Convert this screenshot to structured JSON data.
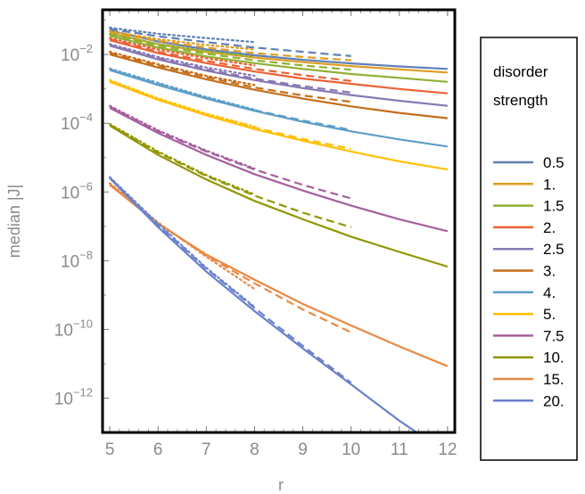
{
  "chart_data": {
    "type": "line",
    "xlabel": "r",
    "ylabel": "median |J|",
    "xlim": [
      4.85,
      12.15
    ],
    "ylim": [
      1e-13,
      0.2
    ],
    "y_scale": "log",
    "x_ticks": [
      5,
      6,
      7,
      8,
      9,
      10,
      11,
      12
    ],
    "y_ticks": [
      {
        "value": 0.01,
        "base": "10",
        "exp": "−2"
      },
      {
        "value": 0.0001,
        "base": "10",
        "exp": "−4"
      },
      {
        "value": 1e-06,
        "base": "10",
        "exp": "−6"
      },
      {
        "value": 1e-08,
        "base": "10",
        "exp": "−8"
      },
      {
        "value": 1e-10,
        "base": "10",
        "exp": "−10"
      },
      {
        "value": 1e-12,
        "base": "10",
        "exp": "−12"
      }
    ],
    "legend": {
      "title_line1": "disorder",
      "title_line2": "strength",
      "position": "right"
    },
    "line_styles": [
      "solid",
      "dashed",
      "dotted"
    ],
    "series": [
      {
        "name": "0.5",
        "color": "#5e81b5",
        "solid": {
          "x": [
            5,
            6,
            7,
            8,
            9,
            10,
            11,
            12
          ],
          "y": [
            0.05,
            0.024,
            0.014,
            0.0095,
            0.007,
            0.0055,
            0.0045,
            0.0038
          ]
        },
        "dashed": {
          "x": [
            5,
            6,
            7,
            8,
            9,
            10
          ],
          "y": [
            0.055,
            0.034,
            0.023,
            0.016,
            0.012,
            0.009
          ]
        },
        "dotted": {
          "x": [
            5,
            6,
            7,
            8
          ],
          "y": [
            0.06,
            0.04,
            0.03,
            0.023
          ]
        }
      },
      {
        "name": "1.",
        "color": "#e19c24",
        "solid": {
          "x": [
            5,
            6,
            7,
            8,
            9,
            10,
            11,
            12
          ],
          "y": [
            0.042,
            0.02,
            0.012,
            0.0082,
            0.006,
            0.0046,
            0.0037,
            0.003
          ]
        },
        "dashed": {
          "x": [
            5,
            6,
            7,
            8,
            9,
            10
          ],
          "y": [
            0.045,
            0.025,
            0.016,
            0.011,
            0.0085,
            0.0068
          ]
        },
        "dotted": {
          "x": [
            5,
            6,
            7,
            8
          ],
          "y": [
            0.048,
            0.028,
            0.019,
            0.014
          ]
        }
      },
      {
        "name": "1.5",
        "color": "#8fb032",
        "solid": {
          "x": [
            5,
            6,
            7,
            8,
            9,
            10,
            11,
            12
          ],
          "y": [
            0.035,
            0.016,
            0.0088,
            0.0056,
            0.0038,
            0.0027,
            0.0021,
            0.0016
          ]
        },
        "dashed": {
          "x": [
            5,
            6,
            7,
            8,
            9,
            10
          ],
          "y": [
            0.038,
            0.018,
            0.0105,
            0.0068,
            0.0048,
            0.0036
          ]
        },
        "dotted": {
          "x": [
            5,
            6,
            7,
            8
          ],
          "y": [
            0.04,
            0.02,
            0.0125,
            0.0085
          ]
        }
      },
      {
        "name": "2.",
        "color": "#eb6235",
        "solid": {
          "x": [
            5,
            6,
            7,
            8,
            9,
            10,
            11,
            12
          ],
          "y": [
            0.026,
            0.011,
            0.0056,
            0.0032,
            0.002,
            0.0014,
            0.00099,
            0.00074
          ]
        },
        "dashed": {
          "x": [
            5,
            6,
            7,
            8,
            9,
            10
          ],
          "y": [
            0.028,
            0.012,
            0.0065,
            0.0038,
            0.0025,
            0.0017
          ]
        },
        "dotted": {
          "x": [
            5,
            6,
            7,
            8
          ],
          "y": [
            0.03,
            0.014,
            0.0078,
            0.0048
          ]
        }
      },
      {
        "name": "2.5",
        "color": "#8778b3",
        "solid": {
          "x": [
            5,
            6,
            7,
            8,
            9,
            10,
            11,
            12
          ],
          "y": [
            0.018,
            0.0072,
            0.0034,
            0.0018,
            0.00105,
            0.00066,
            0.00045,
            0.00032
          ]
        },
        "dashed": {
          "x": [
            5,
            6,
            7,
            8,
            9,
            10
          ],
          "y": [
            0.019,
            0.0078,
            0.0037,
            0.002,
            0.0012,
            0.00078
          ]
        },
        "dotted": {
          "x": [
            5,
            6,
            7,
            8
          ],
          "y": [
            0.02,
            0.0085,
            0.0042,
            0.0024
          ]
        }
      },
      {
        "name": "3.",
        "color": "#c56e1a",
        "solid": {
          "x": [
            5,
            6,
            7,
            8,
            9,
            10,
            11,
            12
          ],
          "y": [
            0.01,
            0.0042,
            0.0019,
            0.00094,
            0.00052,
            0.00031,
            0.0002,
            0.00014
          ]
        },
        "dashed": {
          "x": [
            5,
            6,
            7,
            8,
            9,
            10
          ],
          "y": [
            0.011,
            0.0048,
            0.0022,
            0.0011,
            0.00064,
            0.00042
          ]
        },
        "dotted": {
          "x": [
            5,
            6,
            7,
            8
          ],
          "y": [
            0.012,
            0.0052,
            0.0024,
            0.0013
          ]
        }
      },
      {
        "name": "4.",
        "color": "#5d9ec7",
        "solid": {
          "x": [
            5,
            6,
            7,
            8,
            9,
            10,
            11,
            12
          ],
          "y": [
            0.0035,
            0.0013,
            0.00052,
            0.00023,
            0.00011,
            5.8e-05,
            3.4e-05,
            2.1e-05
          ]
        },
        "dashed": {
          "x": [
            5,
            6,
            7,
            8,
            9,
            10
          ],
          "y": [
            0.0037,
            0.0014,
            0.00055,
            0.00024,
            0.00012,
            6.4e-05
          ]
        },
        "dotted": {
          "x": [
            5,
            6,
            7,
            8
          ],
          "y": [
            0.0039,
            0.0015,
            0.00058,
            0.00025
          ]
        }
      },
      {
        "name": "5.",
        "color": "#ffbf00",
        "solid": {
          "x": [
            5,
            6,
            7,
            8,
            9,
            10,
            11,
            12
          ],
          "y": [
            0.0016,
            0.00048,
            0.00017,
            6.8e-05,
            3.1e-05,
            1.5e-05,
            7.8e-06,
            4.5e-06
          ]
        },
        "dashed": {
          "x": [
            5,
            6,
            7,
            8,
            9,
            10
          ],
          "y": [
            0.0017,
            0.0005,
            0.00018,
            7.5e-05,
            3.5e-05,
            1.8e-05
          ]
        },
        "dotted": {
          "x": [
            5,
            6,
            7,
            8
          ],
          "y": [
            0.0018,
            0.00053,
            0.00019,
            8e-05
          ]
        }
      },
      {
        "name": "7.5",
        "color": "#a5609d",
        "solid": {
          "x": [
            5,
            6,
            7,
            8,
            9,
            10,
            11,
            12
          ],
          "y": [
            0.00028,
            5.2e-05,
            1.2e-05,
            3.3e-06,
            1.1e-06,
            4e-07,
            1.6e-07,
            7.2e-08
          ]
        },
        "dashed": {
          "x": [
            5,
            6,
            7,
            8,
            9,
            10
          ],
          "y": [
            0.0003,
            5.8e-05,
            1.5e-05,
            4.5e-06,
            1.6e-06,
            6.5e-07
          ]
        },
        "dotted": {
          "x": [
            5,
            6,
            7,
            8
          ],
          "y": [
            0.00032,
            6.2e-05,
            1.6e-05,
            4.8e-06
          ]
        }
      },
      {
        "name": "10.",
        "color": "#929600",
        "solid": {
          "x": [
            5,
            6,
            7,
            8,
            9,
            10,
            11,
            12
          ],
          "y": [
            8.5e-05,
            1.2e-05,
            2.3e-06,
            5.5e-07,
            1.6e-07,
            5e-08,
            1.8e-08,
            6.7e-09
          ]
        },
        "dashed": {
          "x": [
            5,
            6,
            7,
            8,
            9,
            10
          ],
          "y": [
            9e-05,
            1.4e-05,
            2.9e-06,
            7.8e-07,
            2.5e-07,
            9.4e-08
          ]
        },
        "dotted": {
          "x": [
            5,
            6,
            7,
            8
          ],
          "y": [
            9.5e-05,
            1.5e-05,
            3.1e-06,
            8.5e-07
          ]
        }
      },
      {
        "name": "15.",
        "color": "#e98944",
        "solid": {
          "x": [
            5,
            6,
            7,
            8,
            9,
            10,
            11,
            12
          ],
          "y": [
            1.6e-06,
            1.2e-07,
            1.5e-08,
            2.8e-09,
            5.5e-10,
            1.3e-10,
            3.2e-11,
            8.5e-12
          ]
        },
        "dashed": {
          "x": [
            5,
            6,
            7,
            8,
            9,
            10
          ],
          "y": [
            1.7e-06,
            1.2e-07,
            1.4e-08,
            2.2e-09,
            3.8e-10,
            8.2e-11
          ]
        },
        "dotted": {
          "x": [
            5,
            6,
            7,
            8
          ],
          "y": [
            1.8e-06,
            1.3e-07,
            1.3e-08,
            1.5e-09
          ]
        }
      },
      {
        "name": "20.",
        "color": "#6a82cc",
        "solid": {
          "x": [
            5,
            6,
            7,
            8,
            9,
            10,
            11,
            12
          ],
          "y": [
            2.5e-06,
            9.5e-08,
            4.8e-09,
            3.4e-10,
            2.8e-11,
            2.5e-12,
            2.2e-13,
            2.5e-14
          ]
        },
        "dashed": {
          "x": [
            5,
            6,
            7,
            8,
            9,
            10
          ],
          "y": [
            2.6e-06,
            1.1e-07,
            5.8e-09,
            4.2e-10,
            3.3e-11,
            2.8e-12
          ]
        },
        "dotted": {
          "x": [
            5,
            6,
            7,
            8
          ],
          "y": [
            2.7e-06,
            1.2e-07,
            6.2e-09,
            4.5e-10
          ]
        }
      }
    ]
  }
}
